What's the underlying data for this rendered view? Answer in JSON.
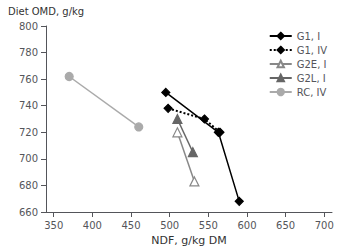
{
  "chart_data": {
    "type": "line",
    "xlabel": "NDF, g/kg DM",
    "ylabel": "Diet OMD, g/kg",
    "series": [
      {
        "name": "G1, I",
        "color": "black",
        "line_style": "solid",
        "marker": "diamond",
        "x": [
          495,
          563,
          590
        ],
        "values": [
          750,
          720,
          668
        ]
      },
      {
        "name": "G1, IV",
        "color": "black",
        "line_style": "dotted",
        "marker": "diamond",
        "x": [
          498,
          545,
          565
        ],
        "values": [
          738,
          730,
          720
        ]
      },
      {
        "name": "G2E, I",
        "color": "#888888",
        "line_style": "solid",
        "marker": "triangle-open",
        "x": [
          510,
          532
        ],
        "values": [
          720,
          683
        ]
      },
      {
        "name": "G2L, I",
        "color": "#666666",
        "line_style": "solid",
        "marker": "triangle",
        "x": [
          510,
          530
        ],
        "values": [
          730,
          705
        ]
      },
      {
        "name": "RC, IV",
        "color": "#aaaaaa",
        "line_style": "solid",
        "marker": "circle",
        "x": [
          370,
          460
        ],
        "values": [
          762,
          724
        ]
      }
    ],
    "xlim": [
      340,
      710
    ],
    "ylim": [
      660,
      800
    ],
    "xticks": [
      350,
      400,
      450,
      500,
      550,
      600,
      650,
      700
    ],
    "yticks": [
      660,
      680,
      700,
      720,
      740,
      760,
      780,
      800
    ],
    "grid": false,
    "legend": "upper right"
  }
}
